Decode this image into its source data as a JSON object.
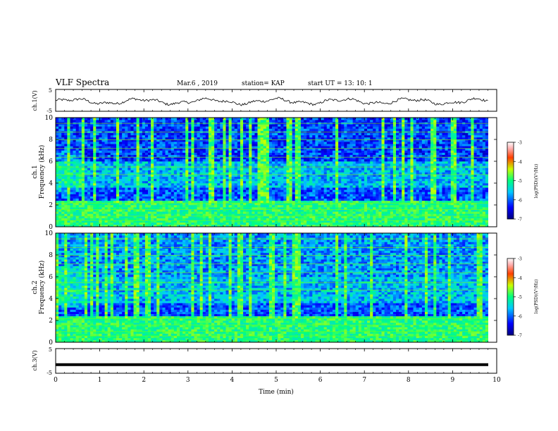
{
  "header": {
    "title": "VLF Spectra",
    "date": "Mar.6  , 2019",
    "station": "station= KAP",
    "start": "start  UT  =   13: 10: 1"
  },
  "chart_data": [
    {
      "type": "line",
      "panel": "ch1-waveform",
      "ylabel": "ch.1(V)",
      "ylim": [
        -5,
        5
      ],
      "yticks": [
        "5",
        "-5"
      ],
      "xlim": [
        0,
        10
      ],
      "description_values": "noisy waveform oscillating between about -2 and 1 V"
    },
    {
      "type": "heatmap",
      "panel": "ch1-spectrogram",
      "ylabel": "ch.1\nFrequency  (kHz)",
      "ylim": [
        0,
        10
      ],
      "yticks": [
        "0",
        "2",
        "4",
        "6",
        "8",
        "10"
      ],
      "xlim": [
        0,
        10
      ],
      "colorbar": {
        "label": "log(PSD)(V²/Hz)",
        "range": [
          -7,
          -3
        ],
        "ticks": [
          "-3",
          "-4",
          "-5",
          "-6",
          "-7"
        ]
      }
    },
    {
      "type": "heatmap",
      "panel": "ch2-spectrogram",
      "ylabel": "ch.2\nFrequency  (kHz)",
      "ylim": [
        0,
        10
      ],
      "yticks": [
        "0",
        "2",
        "4",
        "6",
        "8",
        "10"
      ],
      "xlim": [
        0,
        10
      ],
      "colorbar": {
        "label": "log(PSD)(V²/Hz)",
        "range": [
          -7,
          -3
        ],
        "ticks": [
          "-3",
          "-4",
          "-5",
          "-6",
          "-7"
        ]
      }
    },
    {
      "type": "line",
      "panel": "ch3-waveform",
      "ylabel": "ch.3(V)",
      "ylim": [
        -5,
        5
      ],
      "yticks": [
        "5",
        "-5"
      ],
      "xlim": [
        0,
        10
      ],
      "values_constant": -1.5
    }
  ],
  "xaxis": {
    "label": "Time  (min)",
    "ticks": [
      "0",
      "1",
      "2",
      "3",
      "4",
      "5",
      "6",
      "7",
      "8",
      "9",
      "10"
    ]
  },
  "labels": {
    "ch1v": "ch.1(V)",
    "ch1f_a": "ch.1",
    "ch1f_b": "Frequency  (kHz)",
    "ch2f_a": "ch.2",
    "ch2f_b": "Frequency  (kHz)",
    "ch3v": "ch.3(V)",
    "cbar_label": "log(PSD)(V²/Hz)"
  },
  "colors": {
    "axis": "#000000",
    "background": "#ffffff"
  }
}
